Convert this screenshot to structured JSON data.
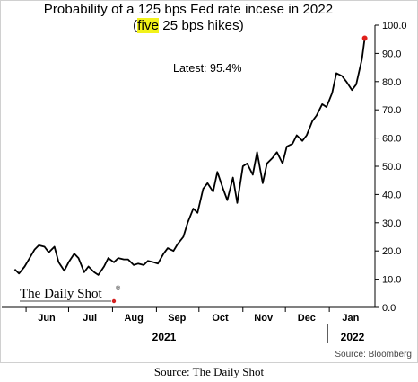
{
  "header": {
    "title_line1": "Probability of a 125 bps Fed rate incese in 2022",
    "title_line2_open": "(",
    "title_line2_highlight": "five",
    "title_line2_rest": " 25 bps hikes)"
  },
  "annotation": {
    "latest": "Latest:  95.4%"
  },
  "watermark": {
    "text": "The Daily Shot",
    "mark": "®"
  },
  "source_note": "Source: Bloomberg",
  "caption": "Source: The Daily Shot",
  "colors": {
    "line": "#000000",
    "latest_dot": "#e0201b",
    "highlight": "#f2f21a",
    "logo_dot": "#d42020"
  },
  "chart_data": {
    "type": "line",
    "title": "Probability of a 125 bps Fed rate incese in 2022 (five 25 bps hikes)",
    "xlabel": "",
    "ylabel": "",
    "ylim": [
      0,
      100
    ],
    "y_ticks": [
      "0.0",
      "10.0",
      "20.0",
      "30.0",
      "40.0",
      "50.0",
      "60.0",
      "70.0",
      "80.0",
      "90.0",
      "100.0"
    ],
    "x_ticks": [
      "Jun",
      "Jul",
      "Aug",
      "Sep",
      "Oct",
      "Nov",
      "Dec",
      "Jan"
    ],
    "year_labels": [
      "2021",
      "2022"
    ],
    "grid": false,
    "latest_value": 95.4,
    "series": [
      {
        "x": [
          "2021-05-24",
          "2021-05-27",
          "2021-05-31",
          "2021-06-03",
          "2021-06-07",
          "2021-06-10",
          "2021-06-14",
          "2021-06-17",
          "2021-06-21",
          "2021-06-24",
          "2021-06-28",
          "2021-07-01",
          "2021-07-05",
          "2021-07-08",
          "2021-07-12",
          "2021-07-15",
          "2021-07-19",
          "2021-07-22",
          "2021-07-26",
          "2021-07-29",
          "2021-08-02",
          "2021-08-05",
          "2021-08-09",
          "2021-08-12",
          "2021-08-16",
          "2021-08-19",
          "2021-08-23",
          "2021-08-26",
          "2021-08-30",
          "2021-09-02",
          "2021-09-06",
          "2021-09-09",
          "2021-09-13",
          "2021-09-16",
          "2021-09-20",
          "2021-09-23",
          "2021-09-27",
          "2021-09-30",
          "2021-10-04",
          "2021-10-07",
          "2021-10-11",
          "2021-10-14",
          "2021-10-18",
          "2021-10-21",
          "2021-10-25",
          "2021-10-28",
          "2021-11-01",
          "2021-11-04",
          "2021-11-08",
          "2021-11-11",
          "2021-11-15",
          "2021-11-18",
          "2021-11-22",
          "2021-11-25",
          "2021-11-29",
          "2021-12-02",
          "2021-12-06",
          "2021-12-09",
          "2021-12-13",
          "2021-12-16",
          "2021-12-20",
          "2021-12-23",
          "2021-12-27",
          "2021-12-30",
          "2022-01-03",
          "2022-01-06",
          "2022-01-10",
          "2022-01-13",
          "2022-01-17",
          "2022-01-20",
          "2022-01-24",
          "2022-01-26"
        ],
        "y": [
          13.5,
          12.0,
          14.5,
          17.0,
          20.5,
          22.0,
          21.5,
          19.5,
          21.5,
          16.0,
          13.0,
          16.0,
          19.0,
          17.5,
          12.5,
          14.5,
          12.5,
          11.5,
          14.5,
          17.5,
          16.0,
          17.5,
          17.0,
          17.0,
          15.0,
          15.5,
          15.0,
          16.5,
          16.0,
          15.5,
          19.0,
          21.0,
          20.0,
          22.5,
          25.0,
          30.0,
          35.0,
          33.5,
          42.0,
          44.0,
          41.0,
          48.0,
          42.0,
          38.0,
          46.0,
          37.0,
          50.0,
          51.0,
          47.0,
          55.0,
          44.0,
          51.0,
          53.0,
          55.0,
          51.0,
          57.0,
          58.0,
          61.0,
          59.0,
          61.0,
          66.0,
          68.0,
          72.0,
          71.0,
          76.0,
          83.0,
          82.0,
          80.0,
          77.0,
          79.0,
          88.0,
          95.4
        ]
      }
    ]
  }
}
